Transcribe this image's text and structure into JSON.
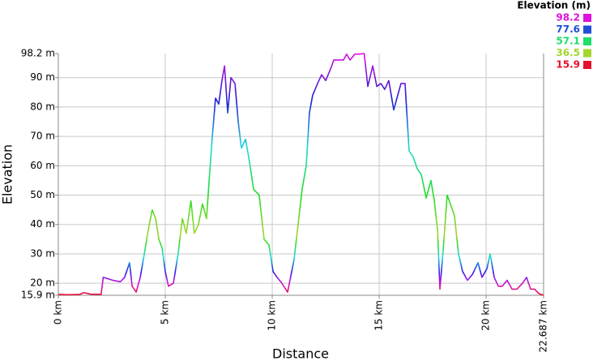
{
  "chart_data": {
    "type": "line",
    "xlabel": "Distance",
    "ylabel": "Elevation",
    "x": [
      0,
      0.5,
      1.0,
      1.2,
      1.5,
      2.0,
      2.1,
      2.55,
      2.9,
      3.1,
      3.33,
      3.45,
      3.64,
      3.83,
      4.02,
      4.2,
      4.39,
      4.55,
      4.7,
      4.85,
      5.0,
      5.15,
      5.38,
      5.6,
      5.8,
      5.98,
      6.2,
      6.36,
      6.55,
      6.74,
      6.93,
      7.05,
      7.2,
      7.35,
      7.5,
      7.65,
      7.77,
      7.92,
      8.07,
      8.26,
      8.41,
      8.56,
      8.75,
      8.9,
      9.13,
      9.39,
      9.62,
      9.85,
      10.04,
      10.23,
      10.45,
      10.72,
      10.83,
      11.02,
      11.21,
      11.4,
      11.59,
      11.74,
      11.89,
      12.12,
      12.31,
      12.5,
      12.73,
      12.88,
      13.11,
      13.33,
      13.48,
      13.64,
      13.86,
      14.09,
      14.3,
      14.47,
      14.7,
      14.89,
      15.08,
      15.26,
      15.45,
      15.68,
      15.83,
      16.02,
      16.21,
      16.4,
      16.59,
      16.78,
      16.97,
      17.2,
      17.42,
      17.58,
      17.73,
      17.84,
      17.99,
      18.18,
      18.33,
      18.52,
      18.71,
      18.9,
      19.13,
      19.36,
      19.62,
      19.81,
      20.04,
      20.19,
      20.38,
      20.57,
      20.76,
      20.98,
      21.21,
      21.44,
      21.7,
      21.89,
      22.08,
      22.27,
      22.46,
      22.687
    ],
    "values": [
      16.2,
      16.1,
      16.2,
      16.8,
      16.3,
      16.2,
      22,
      21,
      20.5,
      22,
      27,
      19,
      17,
      22,
      30,
      38,
      45,
      42,
      35,
      32,
      24,
      19,
      20,
      30,
      42,
      37,
      48,
      37,
      40,
      47,
      42,
      55,
      70,
      83,
      81,
      89,
      94,
      78,
      90,
      88,
      75,
      66,
      69,
      63,
      52,
      50,
      35,
      33,
      24,
      22,
      20,
      17,
      21,
      28,
      40,
      52,
      60,
      78,
      84,
      88,
      91,
      89,
      93,
      96,
      96,
      96,
      98,
      96,
      98,
      98,
      98.2,
      87,
      94,
      87,
      88,
      86,
      89,
      79,
      83,
      88,
      88,
      65,
      63,
      59,
      57,
      49,
      55,
      48,
      38,
      18,
      31,
      50,
      47,
      43,
      30,
      24,
      21,
      23,
      27,
      22,
      25,
      30,
      22,
      19,
      19,
      21,
      18,
      18,
      20,
      22,
      18,
      18,
      16.5,
      15.9
    ],
    "xlim": [
      0,
      22.687
    ],
    "xticks": [
      {
        "value": 0,
        "label": "0 km"
      },
      {
        "value": 5,
        "label": "5 km"
      },
      {
        "value": 10,
        "label": "10 km"
      },
      {
        "value": 15,
        "label": "15 km"
      },
      {
        "value": 20,
        "label": "20 km"
      },
      {
        "value": 22.687,
        "label": "22.687 km"
      }
    ],
    "ylim": [
      15.9,
      98.2
    ],
    "yticks": [
      {
        "value": 15.9,
        "label": "15.9 m"
      },
      {
        "value": 20,
        "label": "20 m"
      },
      {
        "value": 30,
        "label": "30 m"
      },
      {
        "value": 40,
        "label": "40 m"
      },
      {
        "value": 50,
        "label": "50 m"
      },
      {
        "value": 60,
        "label": "60 m"
      },
      {
        "value": 70,
        "label": "70 m"
      },
      {
        "value": 80,
        "label": "80 m"
      },
      {
        "value": 90,
        "label": "90 m"
      },
      {
        "value": 98.2,
        "label": "98.2 m"
      }
    ],
    "grid": true,
    "color_scale": {
      "title": "Elevation (m)",
      "position": "top-right",
      "values": [
        98.2,
        77.6,
        57.1,
        36.5,
        15.9
      ],
      "colors": [
        "#dd11dd",
        "#1f4fd8",
        "#1fdd6a",
        "#a3d62e",
        "#e5102c"
      ]
    }
  }
}
